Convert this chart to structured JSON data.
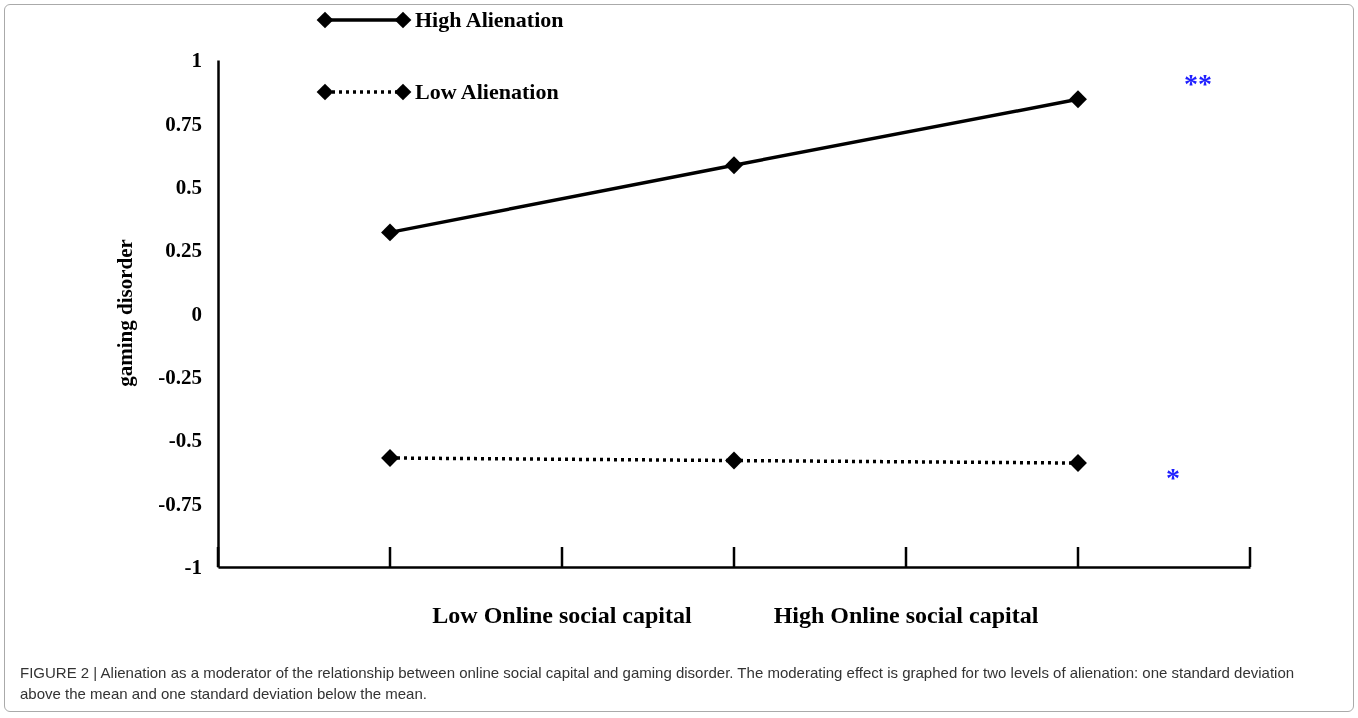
{
  "chart_data": {
    "type": "line",
    "ylabel": "gaming disorder",
    "categories": [
      null,
      null,
      null
    ],
    "series": [
      {
        "name": "High Alienation",
        "color": "#000000",
        "line_style": "solid",
        "values": [
          0.32,
          0.585,
          0.845
        ]
      },
      {
        "name": "Low Alienation",
        "color": "#000000",
        "line_style": "dotted",
        "values": [
          -0.57,
          -0.58,
          -0.59
        ]
      }
    ],
    "ylim": [
      -1,
      1
    ],
    "yticks": [
      -1,
      -0.75,
      -0.5,
      -0.25,
      0,
      0.25,
      0.5,
      0.75,
      1
    ],
    "marker": "diamond",
    "legend": "top left",
    "grid": false,
    "annotations": [
      "Low Online social capital",
      "High Online social capital",
      "**",
      "*",
      "FIGURE 2 | Alienation as a moderator of the relationship between online social capital and gaming disorder. The moderating effect is graphed for two levels of alienation: one standard deviation above the mean and one standard deviation below the mean."
    ]
  }
}
